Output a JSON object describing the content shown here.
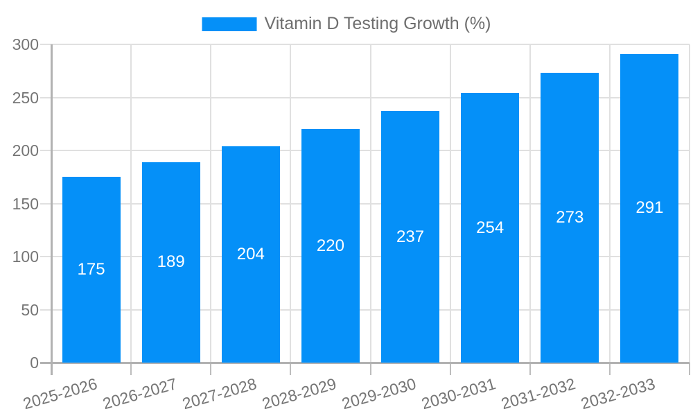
{
  "chart_data": {
    "type": "bar",
    "title": "Vitamin D Testing Growth (%)",
    "categories": [
      "2025-2026",
      "2026-2027",
      "2027-2028",
      "2028-2029",
      "2029-2030",
      "2030-2031",
      "2031-2032",
      "2032-2033"
    ],
    "values": [
      175,
      189,
      204,
      220,
      237,
      254,
      273,
      291
    ],
    "xlabel": "",
    "ylabel": "",
    "ylim": [
      0,
      300
    ],
    "ytick_step": 50,
    "ytick_labels": [
      "0",
      "50",
      "100",
      "150",
      "200",
      "250",
      "300"
    ],
    "grid": true,
    "value_label_position": "inside-center",
    "legend": {
      "label": "Vitamin D Testing Growth (%)",
      "position": "top-center"
    },
    "colors": {
      "bar": "#0590f8",
      "value_label": "#ffffff",
      "grid": "#e0e0e0",
      "axis": "#b2b2b2",
      "tick": "#bdbdbd",
      "tick_label": "#757575",
      "legend_label": "#6e6e6e",
      "background": "#ffffff"
    }
  }
}
